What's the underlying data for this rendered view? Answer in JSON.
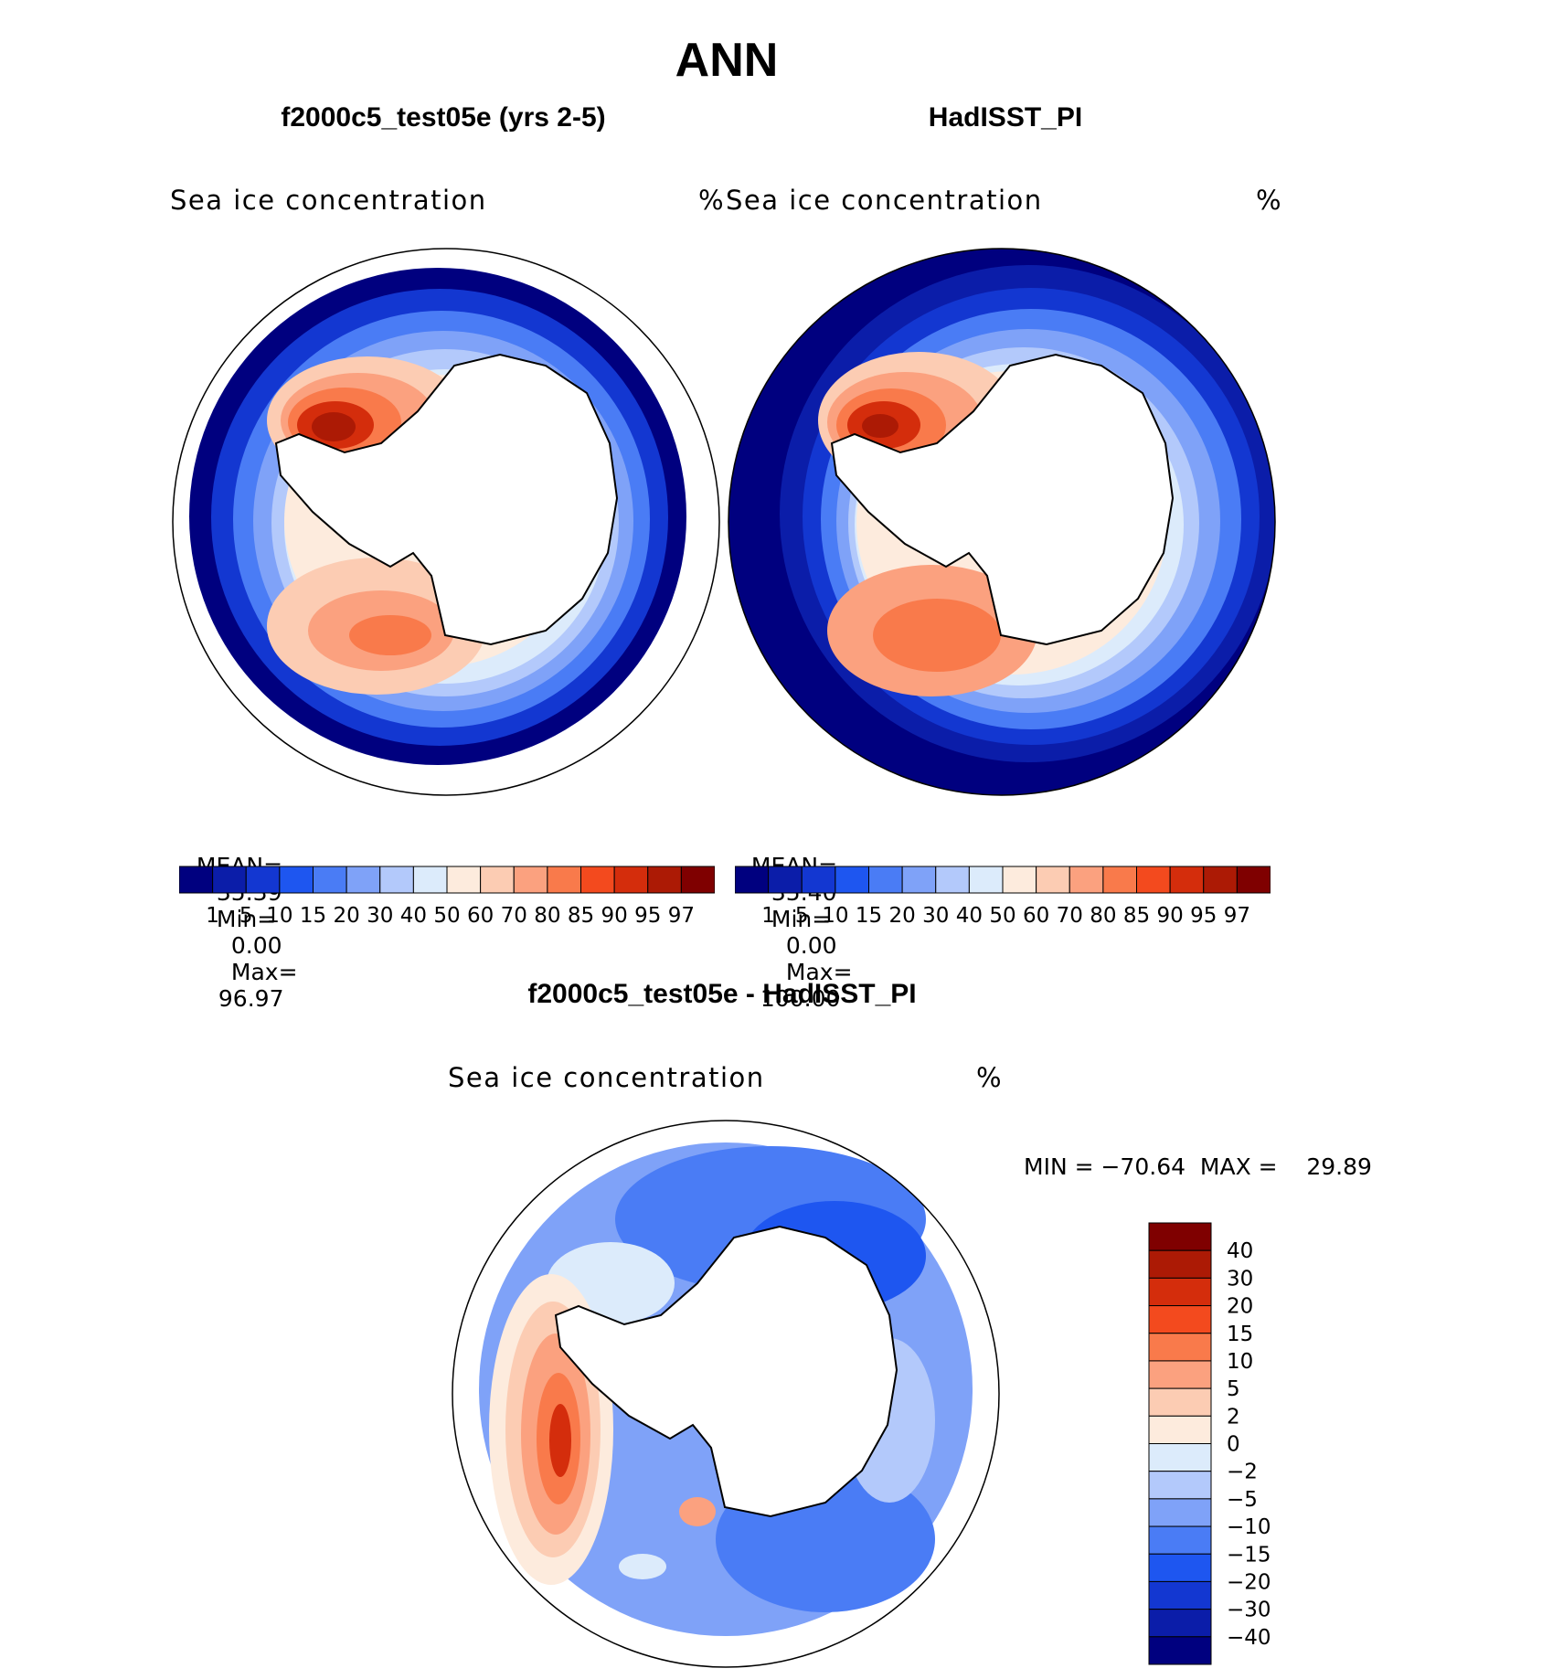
{
  "title": "ANN",
  "panels": [
    {
      "id": "model",
      "title": "f2000c5_test05e (yrs 2-5)",
      "variable": "Sea ice concentration",
      "units": "%",
      "stats": {
        "mean_label": "MEAN=",
        "mean": "35.39",
        "min_label": "Min=",
        "min": "0.00",
        "max_label": "Max=",
        "max": "96.97"
      }
    },
    {
      "id": "obs",
      "title": "HadISST_PI",
      "variable": "Sea ice concentration",
      "units": "%",
      "stats": {
        "mean_label": "MEAN=",
        "mean": "35.40",
        "min_label": "Min=",
        "min": "0.00",
        "max_label": "Max=",
        "max": "100.00"
      }
    }
  ],
  "abs_colorbar": {
    "colors": [
      "#00007f",
      "#0b1da9",
      "#1337d1",
      "#1e56f0",
      "#4a7cf5",
      "#7fa2f8",
      "#b3c9fb",
      "#dcebfb",
      "#fdebdd",
      "#fcccb3",
      "#fba17f",
      "#f97a4b",
      "#f34a1e",
      "#d42d0c",
      "#ac1a05",
      "#7f0000"
    ],
    "ticks": [
      "1",
      "5",
      "10",
      "15",
      "20",
      "30",
      "40",
      "50",
      "60",
      "70",
      "80",
      "85",
      "90",
      "95",
      "97"
    ]
  },
  "diff_panel": {
    "title": "f2000c5_test05e - HadISST_PI",
    "variable": "Sea ice concentration",
    "units": "%",
    "minmax": "MIN = −70.64  MAX =    29.89"
  },
  "diff_colorbar": {
    "colors": [
      "#7f0000",
      "#ac1a05",
      "#d42d0c",
      "#f34a1e",
      "#f97a4b",
      "#fba17f",
      "#fcccb3",
      "#fdebdd",
      "#dcebfb",
      "#b3c9fb",
      "#7fa2f8",
      "#4a7cf5",
      "#1e56f0",
      "#1337d1",
      "#0b1da9",
      "#00007f"
    ],
    "ticks": [
      "40",
      "30",
      "20",
      "15",
      "10",
      "5",
      "2",
      "0",
      "−2",
      "−5",
      "−10",
      "−15",
      "−20",
      "−30",
      "−40"
    ]
  }
}
